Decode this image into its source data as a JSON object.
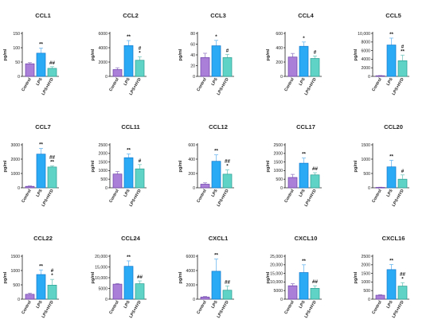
{
  "colors": {
    "Control": "#a97fd8",
    "LPS": "#2aaaf5",
    "LPS+HYD": "#5fd3c6",
    "Control_edge": "#6b3fa8",
    "LPS_edge": "#1177cc",
    "LPS+HYD_edge": "#2a9c8f",
    "err_Control": "#9b84c8",
    "err_LPS": "#6fb8f0",
    "err_LPS+HYD": "#78c8c0"
  },
  "chart_data": [
    {
      "type": "bar",
      "title": "CCL1",
      "ylabel": "pg/ml",
      "categories": [
        "Control",
        "LPS",
        "LPS+HYD"
      ],
      "values": [
        44,
        81,
        28
      ],
      "errors": [
        4,
        18,
        6
      ],
      "ylim": [
        0,
        150
      ],
      "yticks": [
        "0",
        "50",
        "100",
        "150"
      ],
      "annotations": [
        [
          "",
          ""
        ],
        [
          "**",
          ""
        ],
        [
          "##",
          ""
        ]
      ]
    },
    {
      "type": "bar",
      "title": "CCL2",
      "ylabel": "pg/ml",
      "categories": [
        "Control",
        "LPS",
        "LPS+HYD"
      ],
      "values": [
        950,
        4300,
        2250
      ],
      "errors": [
        250,
        700,
        500
      ],
      "ylim": [
        0,
        6000
      ],
      "yticks": [
        "0",
        "2000",
        "4000",
        "6000"
      ],
      "annotations": [
        [
          "",
          ""
        ],
        [
          "**",
          ""
        ],
        [
          "#",
          "*"
        ]
      ]
    },
    {
      "type": "bar",
      "title": "CCL3",
      "ylabel": "pg/ml",
      "categories": [
        "Control",
        "LPS",
        "LPS+HYD"
      ],
      "values": [
        35,
        57,
        35
      ],
      "errors": [
        8,
        10,
        6
      ],
      "ylim": [
        0,
        80
      ],
      "yticks": [
        "0",
        "20",
        "40",
        "60",
        "80"
      ],
      "annotations": [
        [
          "",
          ""
        ],
        [
          "*",
          ""
        ],
        [
          "#",
          ""
        ]
      ]
    },
    {
      "type": "bar",
      "title": "CCL4",
      "ylabel": "pg/ml",
      "categories": [
        "Control",
        "LPS",
        "LPS+HYD"
      ],
      "values": [
        270,
        420,
        250
      ],
      "errors": [
        50,
        60,
        35
      ],
      "ylim": [
        0,
        600
      ],
      "yticks": [
        "0",
        "200",
        "400",
        "600"
      ],
      "annotations": [
        [
          "",
          ""
        ],
        [
          "*",
          ""
        ],
        [
          "#",
          ""
        ]
      ]
    },
    {
      "type": "bar",
      "title": "CCL5",
      "ylabel": "pg/ml",
      "categories": [
        "Control",
        "LPS",
        "LPS+HYD"
      ],
      "values": [
        150,
        7300,
        3650
      ],
      "errors": [
        50,
        1600,
        1300
      ],
      "ylim": [
        0,
        10000
      ],
      "yticks": [
        "0",
        "2000",
        "4000",
        "6000",
        "8000",
        "10,000"
      ],
      "annotations": [
        [
          "",
          ""
        ],
        [
          "**",
          ""
        ],
        [
          "#",
          "**"
        ]
      ]
    },
    {
      "type": "bar",
      "title": "CCL7",
      "ylabel": "pg/ml",
      "categories": [
        "Control",
        "LPS",
        "LPS+HYD"
      ],
      "values": [
        100,
        2350,
        1450
      ],
      "errors": [
        30,
        400,
        80
      ],
      "ylim": [
        0,
        3000
      ],
      "yticks": [
        "0",
        "1000",
        "2000",
        "3000"
      ],
      "annotations": [
        [
          "",
          ""
        ],
        [
          "**",
          ""
        ],
        [
          "##",
          "**"
        ]
      ]
    },
    {
      "type": "bar",
      "title": "CCL11",
      "ylabel": "pg/ml",
      "categories": [
        "Control",
        "LPS",
        "LPS+HYD"
      ],
      "values": [
        800,
        1750,
        1100
      ],
      "errors": [
        150,
        220,
        250
      ],
      "ylim": [
        0,
        2500
      ],
      "yticks": [
        "0",
        "500",
        "1000",
        "1500",
        "2000",
        "2500"
      ],
      "annotations": [
        [
          "",
          ""
        ],
        [
          "**",
          ""
        ],
        [
          "#",
          ""
        ]
      ]
    },
    {
      "type": "bar",
      "title": "CCL12",
      "ylabel": "pg/ml",
      "categories": [
        "Control",
        "LPS",
        "LPS+HYD"
      ],
      "values": [
        50,
        370,
        190
      ],
      "errors": [
        20,
        90,
        60
      ],
      "ylim": [
        0,
        600
      ],
      "yticks": [
        "0",
        "200",
        "400",
        "600"
      ],
      "annotations": [
        [
          "",
          ""
        ],
        [
          "**",
          ""
        ],
        [
          "##",
          "*"
        ]
      ]
    },
    {
      "type": "bar",
      "title": "CCL17",
      "ylabel": "pg/ml",
      "categories": [
        "Control",
        "LPS",
        "LPS+HYD"
      ],
      "values": [
        600,
        1430,
        750
      ],
      "errors": [
        180,
        300,
        130
      ],
      "ylim": [
        0,
        2500
      ],
      "yticks": [
        "0",
        "500",
        "1000",
        "1500",
        "2000",
        "2500"
      ],
      "annotations": [
        [
          "",
          ""
        ],
        [
          "**",
          ""
        ],
        [
          "##",
          ""
        ]
      ]
    },
    {
      "type": "bar",
      "title": "CCL20",
      "ylabel": "pg/ml",
      "categories": [
        "Control",
        "LPS",
        "LPS+HYD"
      ],
      "values": [
        15,
        730,
        300
      ],
      "errors": [
        5,
        230,
        150
      ],
      "ylim": [
        0,
        1500
      ],
      "yticks": [
        "0",
        "500",
        "1000",
        "1500"
      ],
      "annotations": [
        [
          "",
          ""
        ],
        [
          "**",
          ""
        ],
        [
          "#",
          ""
        ]
      ]
    },
    {
      "type": "bar",
      "title": "CCL22",
      "ylabel": "pg/ml",
      "categories": [
        "Control",
        "LPS",
        "LPS+HYD"
      ],
      "values": [
        170,
        860,
        490
      ],
      "errors": [
        40,
        160,
        200
      ],
      "ylim": [
        0,
        1500
      ],
      "yticks": [
        "0",
        "500",
        "1000",
        "1500"
      ],
      "annotations": [
        [
          "",
          ""
        ],
        [
          "**",
          ""
        ],
        [
          "#",
          "*"
        ]
      ]
    },
    {
      "type": "bar",
      "title": "CCL24",
      "ylabel": "pg/ml",
      "categories": [
        "Control",
        "LPS",
        "LPS+HYD"
      ],
      "values": [
        7000,
        15300,
        7200
      ],
      "errors": [
        300,
        2500,
        1300
      ],
      "ylim": [
        0,
        20000
      ],
      "yticks": [
        "0",
        "5000",
        "10,000",
        "15,000",
        "20,000"
      ],
      "annotations": [
        [
          "",
          ""
        ],
        [
          "**",
          ""
        ],
        [
          "##",
          ""
        ]
      ]
    },
    {
      "type": "bar",
      "title": "CXCL1",
      "ylabel": "pg/ml",
      "categories": [
        "Control",
        "LPS",
        "LPS+HYD"
      ],
      "values": [
        300,
        3900,
        1250
      ],
      "errors": [
        80,
        1700,
        600
      ],
      "ylim": [
        0,
        6000
      ],
      "yticks": [
        "0",
        "2000",
        "4000",
        "6000"
      ],
      "annotations": [
        [
          "",
          ""
        ],
        [
          "**",
          ""
        ],
        [
          "##",
          ""
        ]
      ]
    },
    {
      "type": "bar",
      "title": "CXCL10",
      "ylabel": "pg/ml",
      "categories": [
        "Control",
        "LPS",
        "LPS+HYD"
      ],
      "values": [
        7800,
        15500,
        6300
      ],
      "errors": [
        1200,
        4500,
        1500
      ],
      "ylim": [
        0,
        25000
      ],
      "yticks": [
        "0",
        "5000",
        "10,000",
        "15,000",
        "20,000",
        "25,000"
      ],
      "annotations": [
        [
          "",
          ""
        ],
        [
          "**",
          ""
        ],
        [
          "##",
          ""
        ]
      ]
    },
    {
      "type": "bar",
      "title": "CXCL16",
      "ylabel": "pg/ml",
      "categories": [
        "Control",
        "LPS",
        "LPS+HYD"
      ],
      "values": [
        230,
        1720,
        760
      ],
      "errors": [
        30,
        300,
        200
      ],
      "ylim": [
        0,
        2500
      ],
      "yticks": [
        "0",
        "500",
        "1000",
        "1500",
        "2000",
        "2500"
      ],
      "annotations": [
        [
          "",
          ""
        ],
        [
          "**",
          ""
        ],
        [
          "##",
          "*"
        ]
      ]
    }
  ]
}
